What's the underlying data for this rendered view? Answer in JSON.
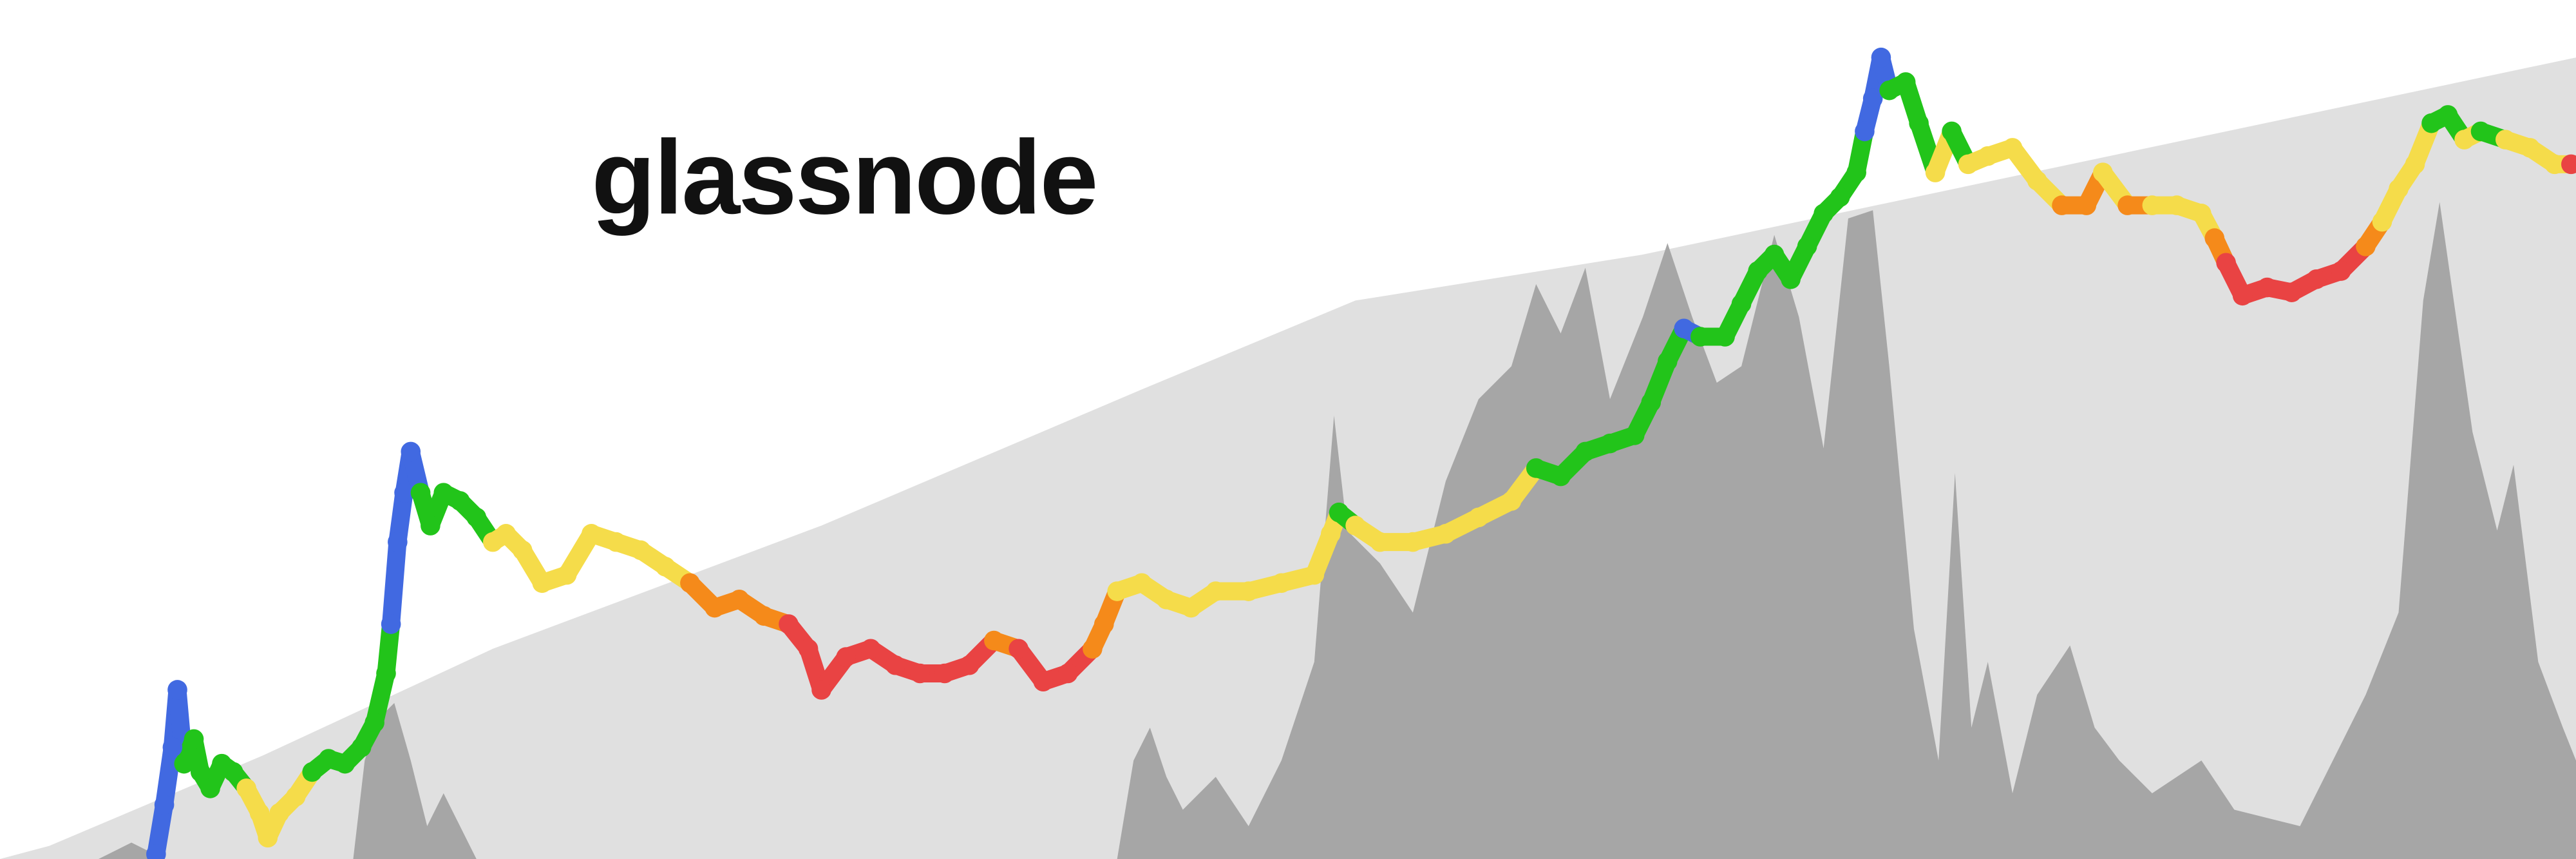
{
  "chart_data": {
    "type": "line",
    "title": "glassnode",
    "xlim": [
      0,
      1568
    ],
    "ylim": [
      0,
      523
    ],
    "area_color": "#e0e0e0",
    "volume_color": "#a6a6a6",
    "area": {
      "x": [
        0,
        30,
        160,
        300,
        500,
        700,
        825,
        1000,
        1568
      ],
      "values": [
        0,
        8,
        63,
        128,
        203,
        288,
        340,
        368,
        488
      ]
    },
    "volume": {
      "x": [
        60,
        80,
        100,
        215,
        222,
        230,
        240,
        250,
        260,
        270,
        290,
        680,
        690,
        700,
        710,
        720,
        740,
        760,
        780,
        800,
        812,
        820,
        840,
        860,
        880,
        900,
        920,
        935,
        950,
        965,
        980,
        1000,
        1015,
        1030,
        1045,
        1060,
        1080,
        1095,
        1110,
        1125,
        1140,
        1150,
        1165,
        1180,
        1190,
        1200,
        1210,
        1225,
        1240,
        1260,
        1275,
        1290,
        1310,
        1340,
        1360,
        1400,
        1420,
        1440,
        1460,
        1475,
        1485,
        1495,
        1505,
        1520,
        1530,
        1545,
        1560,
        1568
      ],
      "values": [
        0,
        10,
        0,
        0,
        60,
        85,
        95,
        60,
        20,
        40,
        0,
        0,
        60,
        80,
        50,
        30,
        50,
        20,
        60,
        120,
        270,
        200,
        180,
        150,
        230,
        280,
        300,
        350,
        320,
        360,
        280,
        330,
        375,
        330,
        290,
        300,
        380,
        330,
        250,
        390,
        395,
        300,
        140,
        60,
        235,
        80,
        120,
        40,
        100,
        130,
        80,
        60,
        40,
        60,
        30,
        20,
        60,
        100,
        150,
        340,
        400,
        330,
        260,
        200,
        240,
        120,
        80,
        60
      ]
    },
    "price": {
      "x": [
        95,
        100,
        105,
        108,
        112,
        118,
        122,
        128,
        135,
        142,
        150,
        158,
        163,
        170,
        180,
        190,
        200,
        210,
        220,
        228,
        235,
        238,
        242,
        246,
        250,
        256,
        262,
        270,
        280,
        290,
        300,
        308,
        318,
        330,
        345,
        360,
        375,
        390,
        405,
        420,
        435,
        450,
        465,
        480,
        492,
        500,
        515,
        530,
        545,
        560,
        575,
        590,
        605,
        620,
        635,
        650,
        665,
        672,
        680,
        695,
        710,
        725,
        740,
        760,
        780,
        800,
        810,
        815,
        825,
        840,
        860,
        880,
        900,
        920,
        935,
        950,
        965,
        980,
        995,
        1005,
        1015,
        1025,
        1035,
        1050,
        1060,
        1070,
        1080,
        1090,
        1100,
        1110,
        1120,
        1130,
        1135,
        1140,
        1145,
        1150,
        1160,
        1168,
        1178,
        1188,
        1198,
        1210,
        1225,
        1240,
        1255,
        1270,
        1280,
        1295,
        1310,
        1325,
        1340,
        1348,
        1355,
        1365,
        1380,
        1395,
        1410,
        1425,
        1440,
        1450,
        1460,
        1470,
        1480,
        1490,
        1500,
        1510,
        1525,
        1540,
        1555,
        1565
      ],
      "values": [
        3,
        33,
        68,
        103,
        58,
        73,
        53,
        43,
        58,
        53,
        43,
        28,
        13,
        28,
        38,
        53,
        61,
        58,
        68,
        83,
        113,
        143,
        193,
        223,
        248,
        223,
        203,
        223,
        218,
        208,
        193,
        198,
        188,
        168,
        173,
        198,
        193,
        188,
        178,
        168,
        153,
        158,
        148,
        143,
        128,
        103,
        123,
        128,
        118,
        113,
        113,
        118,
        133,
        128,
        108,
        113,
        128,
        143,
        163,
        168,
        158,
        153,
        163,
        163,
        168,
        173,
        198,
        211,
        203,
        193,
        193,
        198,
        208,
        218,
        238,
        233,
        248,
        253,
        258,
        278,
        303,
        323,
        318,
        318,
        338,
        358,
        368,
        353,
        373,
        393,
        403,
        418,
        443,
        463,
        488,
        468,
        473,
        448,
        418,
        443,
        423,
        428,
        433,
        413,
        398,
        398,
        418,
        398,
        398,
        398,
        393,
        378,
        363,
        343,
        348,
        345,
        353,
        358,
        373,
        388,
        408,
        423,
        448,
        453,
        438,
        443,
        438,
        433,
        423,
        423
      ],
      "colors": [
        "#4169e1",
        "#4169e1",
        "#4169e1",
        "#4169e1",
        "#22c41a",
        "#22c41a",
        "#22c41a",
        "#22c41a",
        "#22c41a",
        "#22c41a",
        "#f5dc4a",
        "#f5dc4a",
        "#f5dc4a",
        "#f5dc4a",
        "#f5dc4a",
        "#22c41a",
        "#22c41a",
        "#22c41a",
        "#22c41a",
        "#22c41a",
        "#22c41a",
        "#4169e1",
        "#4169e1",
        "#4169e1",
        "#4169e1",
        "#22c41a",
        "#22c41a",
        "#22c41a",
        "#22c41a",
        "#22c41a",
        "#f5dc4a",
        "#f5dc4a",
        "#f5dc4a",
        "#f5dc4a",
        "#f5dc4a",
        "#f5dc4a",
        "#f5dc4a",
        "#f5dc4a",
        "#f5dc4a",
        "#f58a1a",
        "#f58a1a",
        "#f58a1a",
        "#f58a1a",
        "#e94343",
        "#e94343",
        "#e94343",
        "#e94343",
        "#e94343",
        "#e94343",
        "#e94343",
        "#e94343",
        "#e94343",
        "#f58a1a",
        "#e94343",
        "#e94343",
        "#e94343",
        "#f58a1a",
        "#f58a1a",
        "#f5dc4a",
        "#f5dc4a",
        "#f5dc4a",
        "#f5dc4a",
        "#f5dc4a",
        "#f5dc4a",
        "#f5dc4a",
        "#f5dc4a",
        "#f5dc4a",
        "#22c41a",
        "#f5dc4a",
        "#f5dc4a",
        "#f5dc4a",
        "#f5dc4a",
        "#f5dc4a",
        "#f5dc4a",
        "#22c41a",
        "#22c41a",
        "#22c41a",
        "#22c41a",
        "#22c41a",
        "#22c41a",
        "#22c41a",
        "#4169e1",
        "#22c41a",
        "#22c41a",
        "#22c41a",
        "#22c41a",
        "#22c41a",
        "#22c41a",
        "#22c41a",
        "#22c41a",
        "#22c41a",
        "#22c41a",
        "#4169e1",
        "#4169e1",
        "#4169e1",
        "#22c41a",
        "#22c41a",
        "#22c41a",
        "#f5dc4a",
        "#22c41a",
        "#f5dc4a",
        "#f5dc4a",
        "#f5dc4a",
        "#f5dc4a",
        "#f58a1a",
        "#f58a1a",
        "#f5dc4a",
        "#f58a1a",
        "#f5dc4a",
        "#f5dc4a",
        "#f5dc4a",
        "#f58a1a",
        "#e94343",
        "#e94343",
        "#e94343",
        "#e94343",
        "#e94343",
        "#e94343",
        "#f58a1a",
        "#f5dc4a",
        "#f5dc4a",
        "#f5dc4a",
        "#22c41a",
        "#22c41a",
        "#f5dc4a",
        "#22c41a",
        "#f5dc4a",
        "#f5dc4a",
        "#f5dc4a",
        "#e94343"
      ]
    }
  }
}
